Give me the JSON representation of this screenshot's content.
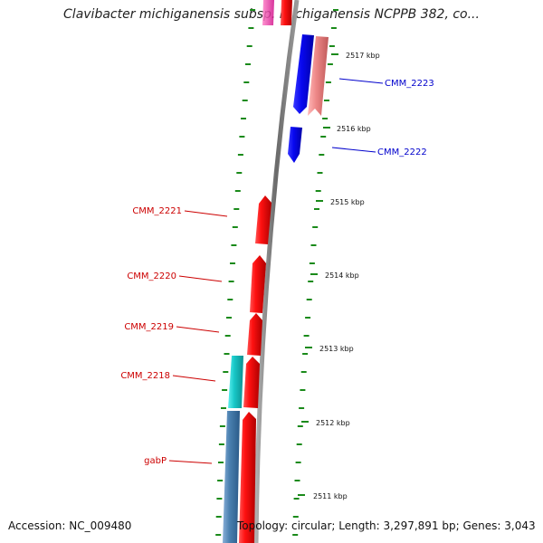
{
  "title": "Clavibacter michiganensis subsp. michiganensis NCPPB 382, co...",
  "footer": {
    "accession": "Accession: NC_009480",
    "topology": "Topology: circular; Length: 3,297,891 bp; Genes: 3,043"
  },
  "scale_ticks": [
    "2517 kbp",
    "2516 kbp",
    "2515 kbp",
    "2514 kbp",
    "2513 kbp",
    "2512 kbp",
    "2511 kbp"
  ],
  "genes": [
    {
      "name": "CMM_2223",
      "strand": "+",
      "color": "#ec8c8c",
      "label_color": "#0000cc"
    },
    {
      "name": "CMM_2222",
      "strand": "+",
      "color": "#0a0aee",
      "label_color": "#0000cc"
    },
    {
      "name": "CMM_2221",
      "strand": "-",
      "color": "#ee0000",
      "label_color": "#cc0000"
    },
    {
      "name": "CMM_2220",
      "strand": "-",
      "color": "#ee0000",
      "label_color": "#cc0000"
    },
    {
      "name": "CMM_2219",
      "strand": "-",
      "color": "#ee0000",
      "label_color": "#cc0000"
    },
    {
      "name": "CMM_2218",
      "strand": "-",
      "color": "#ee0000",
      "label_color": "#cc0000"
    },
    {
      "name": "gabP",
      "strand": "-",
      "color": "#ee0000",
      "label_color": "#cc0000"
    }
  ],
  "colors": {
    "backbone": "#808080",
    "gc_skew_marks": "#1a8a1a",
    "cds_forward": "#0a0aee",
    "cds_reverse": "#ee0000",
    "rna": "#ec8c8c",
    "cyan_feature": "#18c8c8",
    "steelblue_feature": "#4a80b0",
    "magenta_feature": "#ee2aa0"
  }
}
